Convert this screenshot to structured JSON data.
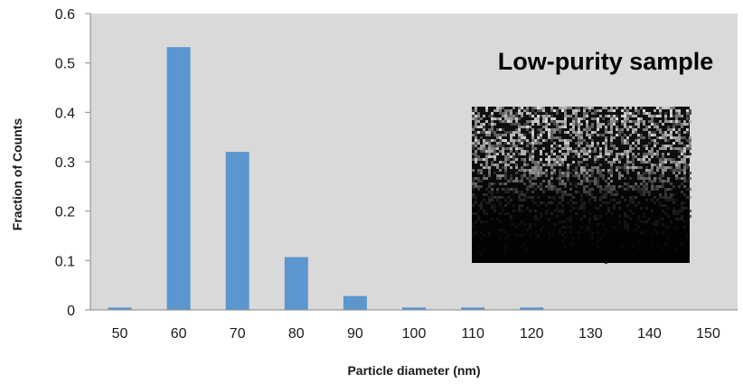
{
  "chart_data": {
    "type": "bar",
    "categories": [
      "50",
      "60",
      "70",
      "80",
      "90",
      "100",
      "110",
      "120",
      "130",
      "140",
      "150"
    ],
    "values": [
      0.005,
      0.532,
      0.32,
      0.107,
      0.028,
      0.005,
      0.005,
      0.005,
      0,
      0,
      0
    ],
    "title": "",
    "xlabel": "Particle diameter (nm)",
    "ylabel": "Fraction of Counts",
    "ylim": [
      0,
      0.6
    ],
    "yticks": [
      "0",
      "0.1",
      "0.2",
      "0.3",
      "0.4",
      "0.5",
      "0.6"
    ],
    "annotation": "Low-purity sample",
    "inset_image": "grayscale noisy micrograph, brighter speckle at top fading to dark at bottom",
    "grid": false,
    "colors": {
      "plot_background": "#d9d9d9",
      "bar": "#5b96cf",
      "axis": "#888888"
    }
  }
}
